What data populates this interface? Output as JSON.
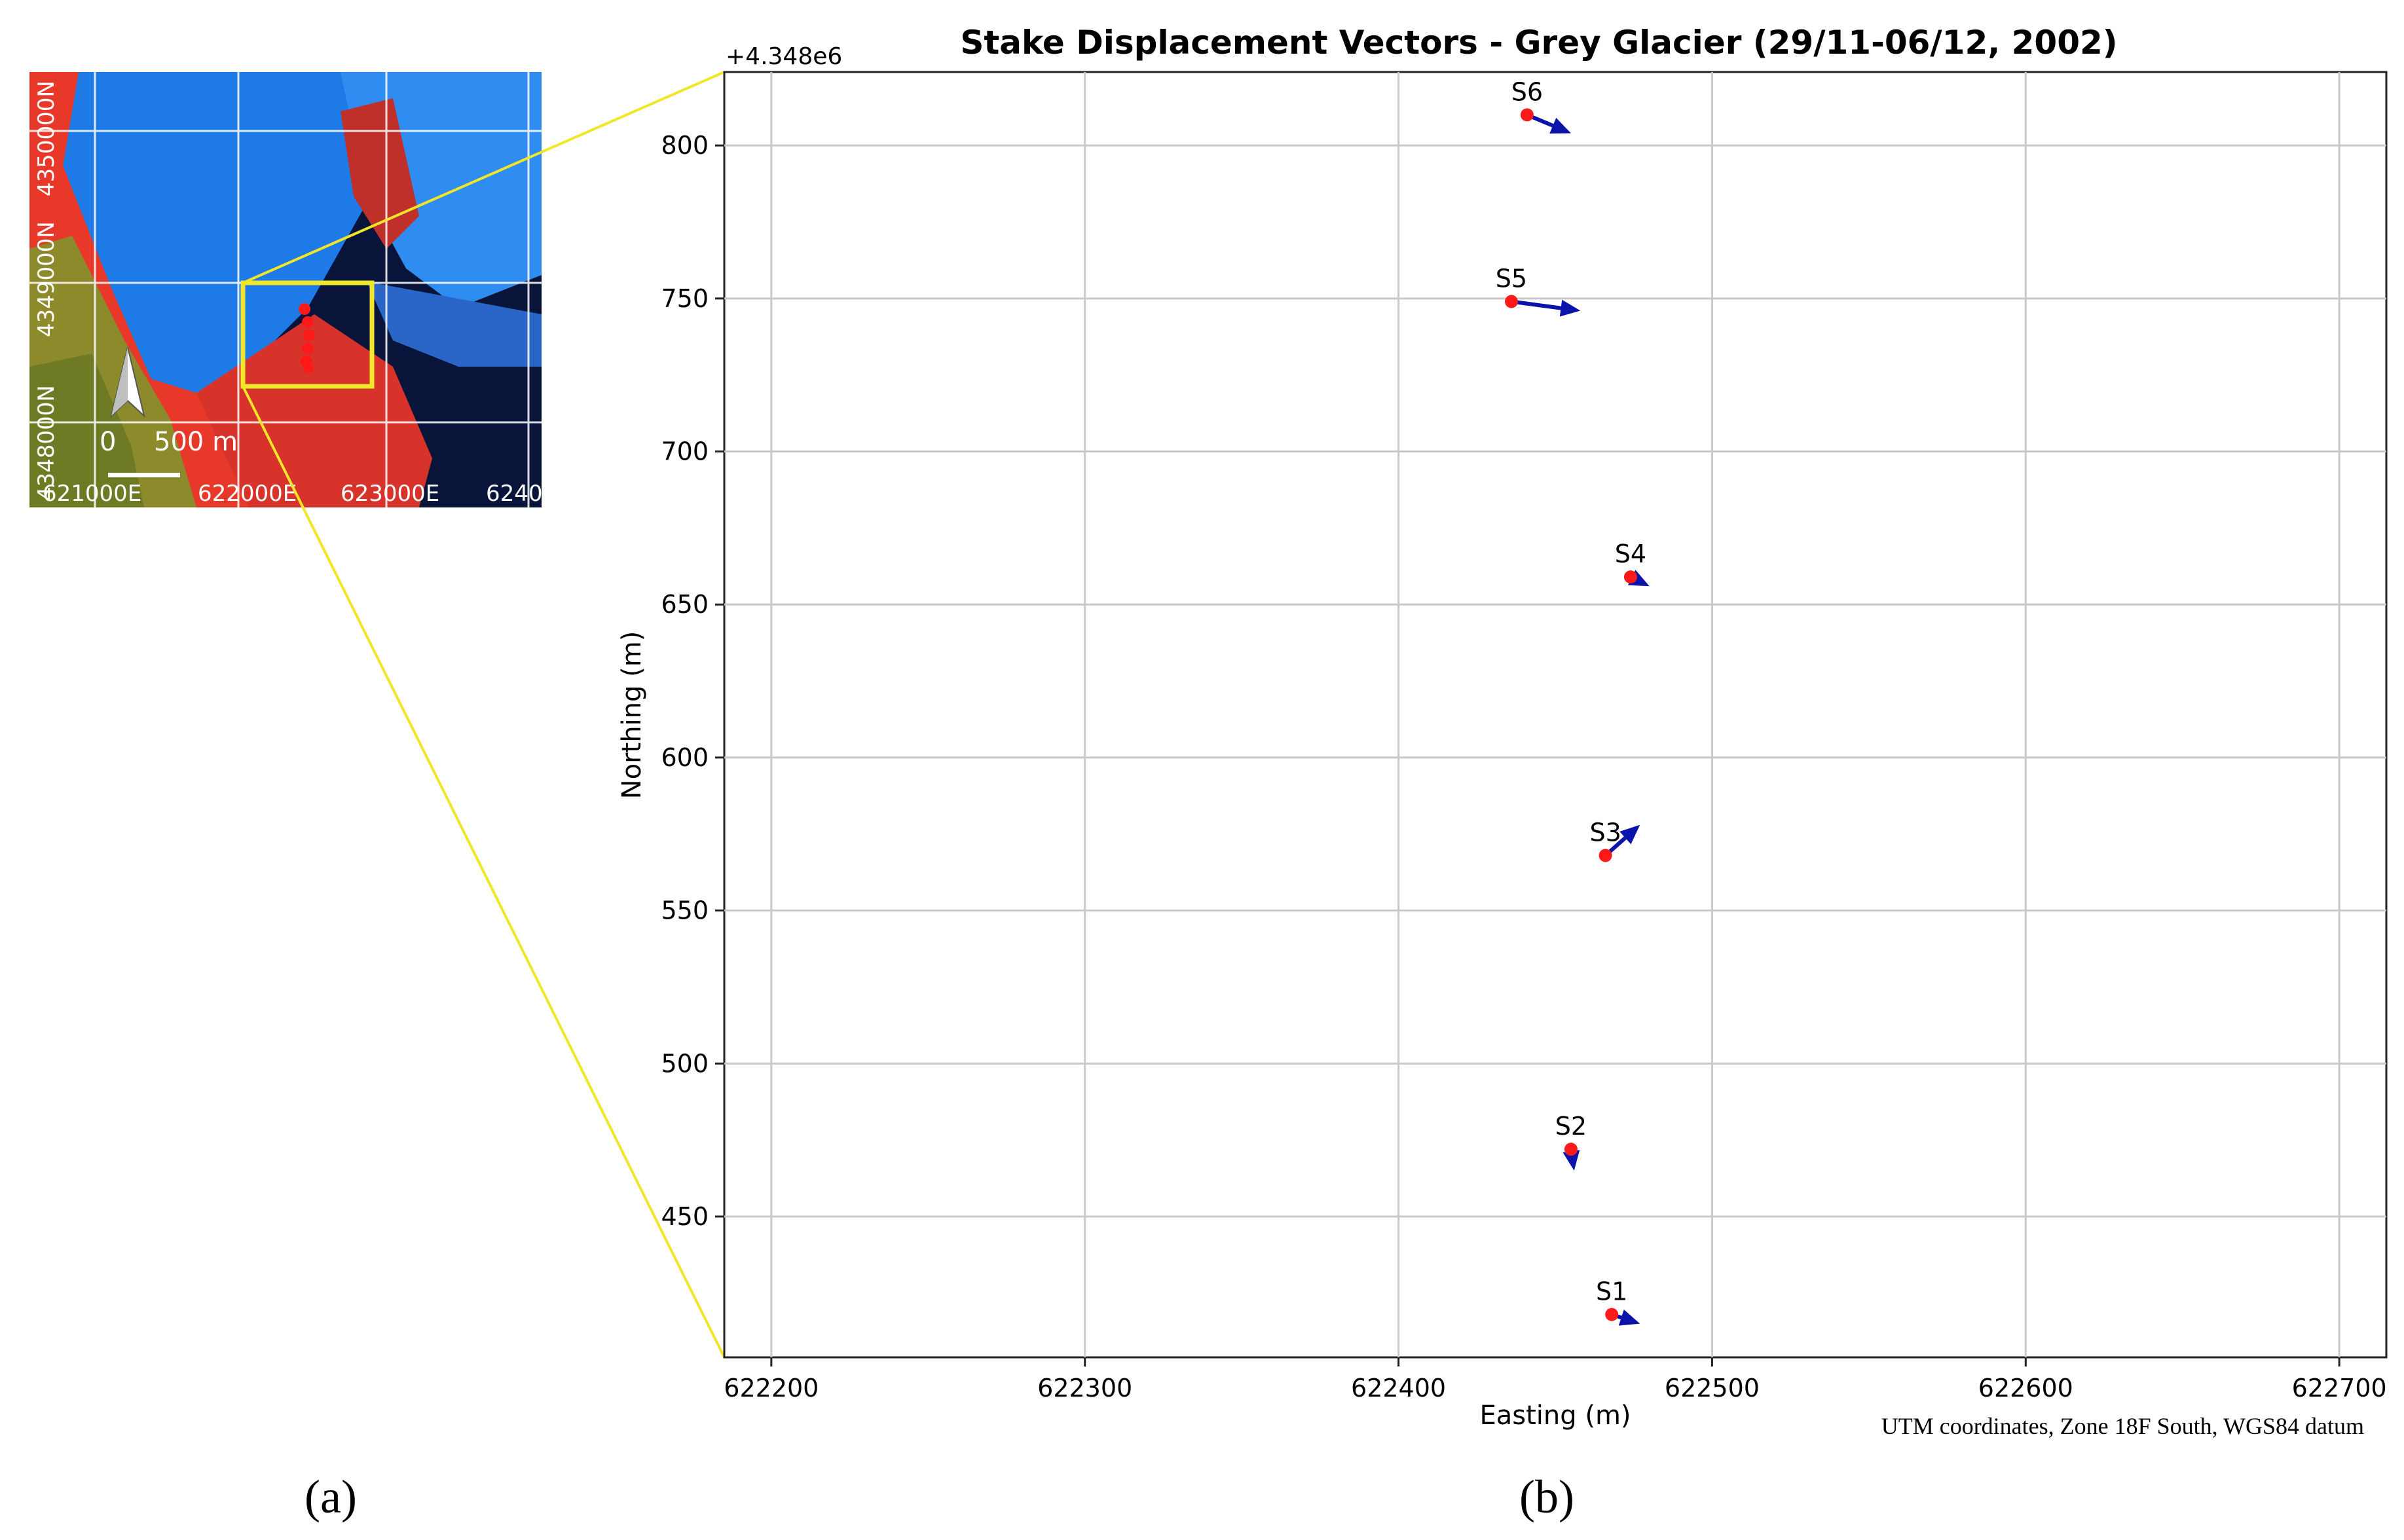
{
  "colors": {
    "water_blue": "#1e7ae6",
    "ice_blue": "#2f8cf0",
    "rock_red": "#e8382a",
    "vegetation_olive": "#8c8a2a",
    "dark_navy": "#08143a",
    "inset_box": "#f0e62a",
    "zoom_line": "#f0e62a",
    "stake_red": "#ff1a1a",
    "arrow_blue": "#0a14aa",
    "grid": "#c9c9c9",
    "axis": "#222222"
  },
  "panel_a": {
    "label": "(a)",
    "northing_labels": [
      "4350000N",
      "4349000N",
      "4348000N"
    ],
    "easting_labels": [
      "621000E",
      "622000E",
      "623000E",
      "6240"
    ],
    "scale_zero": "0",
    "scale_text": "500 m",
    "north_arrow_icon": "north-arrow-icon"
  },
  "panel_b": {
    "label": "(b)",
    "footnote": "UTM coordinates, Zone 18F South, WGS84 datum"
  },
  "chart_data": {
    "type": "scatter",
    "title": "Stake Displacement Vectors - Grey Glacier (29/11-06/12, 2002)",
    "xlabel": "Easting (m)",
    "ylabel": "Northing (m)",
    "y_offset_text": "+4.348e6",
    "xlim": [
      622185,
      622715
    ],
    "ylim": [
      404,
      824
    ],
    "xticks": [
      622200,
      622300,
      622400,
      622500,
      622600,
      622700
    ],
    "yticks": [
      450,
      500,
      550,
      600,
      650,
      700,
      750,
      800
    ],
    "yticklabels": [
      "450",
      "500",
      "550",
      "600",
      "650",
      "700",
      "750",
      "800"
    ],
    "grid": true,
    "stakes": [
      {
        "name": "S1",
        "x": 622468,
        "y": 4348418,
        "dx": 9,
        "dy": -3
      },
      {
        "name": "S2",
        "x": 622455,
        "y": 4348472,
        "dx": 1,
        "dy": -7
      },
      {
        "name": "S3",
        "x": 622466,
        "y": 4348568,
        "dx": 11,
        "dy": 10
      },
      {
        "name": "S4",
        "x": 622474,
        "y": 4348659,
        "dx": 6,
        "dy": -3
      },
      {
        "name": "S5",
        "x": 622436,
        "y": 4348749,
        "dx": 22,
        "dy": -3
      },
      {
        "name": "S6",
        "x": 622441,
        "y": 4348810,
        "dx": 14,
        "dy": -6
      }
    ]
  }
}
